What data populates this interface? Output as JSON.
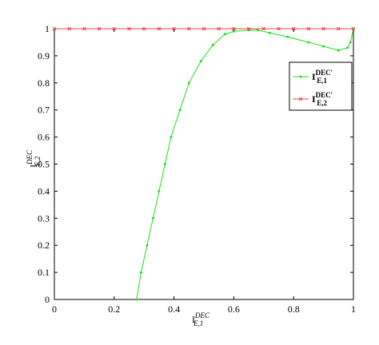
{
  "chart_data": {
    "type": "line",
    "x_label": {
      "base": "I",
      "sub": "E,1",
      "sup": "DEC"
    },
    "y_label": {
      "base": "I",
      "sub": "E,2",
      "sup": "DEC"
    },
    "xlim": [
      0,
      1
    ],
    "ylim": [
      0,
      1
    ],
    "xticks": [
      0,
      0.2,
      0.4,
      0.6,
      0.8,
      1
    ],
    "yticks": [
      0,
      0.1,
      0.2,
      0.3,
      0.4,
      0.5,
      0.6,
      0.7,
      0.8,
      0.9,
      1
    ],
    "legend": "upper-right",
    "series": [
      {
        "name": {
          "base": "I",
          "sub": "E,1",
          "sup": "DEC′"
        },
        "color": "#22dd22",
        "marker": "dot",
        "x": [
          0.275,
          0.29,
          0.31,
          0.33,
          0.35,
          0.37,
          0.39,
          0.42,
          0.45,
          0.49,
          0.53,
          0.57,
          0.6,
          0.65,
          0.68,
          0.72,
          0.78,
          0.85,
          0.9,
          0.95,
          0.98,
          0.99,
          1.0
        ],
        "values": [
          0,
          0.1,
          0.2,
          0.3,
          0.4,
          0.5,
          0.6,
          0.7,
          0.8,
          0.88,
          0.94,
          0.98,
          0.99,
          0.995,
          0.995,
          0.985,
          0.97,
          0.95,
          0.935,
          0.92,
          0.93,
          0.95,
          1.0
        ]
      },
      {
        "name": {
          "base": "I",
          "sub": "E,2",
          "sup": "DEC′"
        },
        "color": "#ee4444",
        "marker": "x",
        "x": [
          0,
          0.05,
          0.1,
          0.15,
          0.2,
          0.25,
          0.3,
          0.35,
          0.4,
          0.45,
          0.5,
          0.55,
          0.6,
          0.65,
          0.7,
          0.75,
          0.8,
          0.85,
          0.9,
          0.95,
          1
        ],
        "values": [
          1,
          1,
          1,
          1,
          1,
          1,
          1,
          1,
          1,
          1,
          1,
          1,
          1,
          1,
          1,
          1,
          1,
          1,
          1,
          1,
          1
        ]
      }
    ]
  }
}
